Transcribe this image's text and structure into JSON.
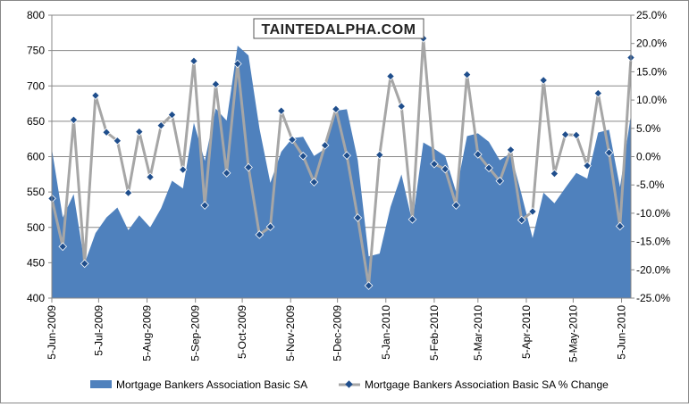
{
  "chart_data": {
    "type": "area+line",
    "title": "",
    "watermark": "TAINTEDALPHA.COM",
    "x_start": "5-Jun-2009",
    "interval_days": 7,
    "x_ticks": [
      {
        "label": "5-Jun-2009",
        "day": 0
      },
      {
        "label": "5-Jul-2009",
        "day": 30
      },
      {
        "label": "5-Aug-2009",
        "day": 61
      },
      {
        "label": "5-Sep-2009",
        "day": 92
      },
      {
        "label": "5-Oct-2009",
        "day": 122
      },
      {
        "label": "5-Nov-2009",
        "day": 153
      },
      {
        "label": "5-Dec-2009",
        "day": 183
      },
      {
        "label": "5-Jan-2010",
        "day": 214
      },
      {
        "label": "5-Feb-2010",
        "day": 245
      },
      {
        "label": "5-Mar-2010",
        "day": 273
      },
      {
        "label": "5-Apr-2010",
        "day": 304
      },
      {
        "label": "5-May-2010",
        "day": 334
      },
      {
        "label": "5-Jun-2010",
        "day": 365
      }
    ],
    "x_range_days": [
      0,
      371
    ],
    "y_left": {
      "min": 400,
      "max": 800,
      "step": 50,
      "ticks": [
        "400",
        "450",
        "500",
        "550",
        "600",
        "650",
        "700",
        "750",
        "800"
      ]
    },
    "y_right": {
      "min": -25,
      "max": 25,
      "step": 5,
      "ticks": [
        "-25.0%",
        "-20.0%",
        "-15.0%",
        "-10.0%",
        "-5.0%",
        "0.0%",
        "5.0%",
        "10.0%",
        "15.0%",
        "20.0%",
        "25.0%"
      ]
    },
    "grid": true,
    "legend_position": "bottom",
    "series": [
      {
        "name": "Mortgage Bankers Association Basic SA",
        "type": "area",
        "axis": "left",
        "color": "#4f81bd",
        "values": [
          611,
          514,
          547,
          449,
          492,
          514,
          528,
          496,
          517,
          500,
          527,
          566,
          555,
          648,
          594,
          668,
          651,
          757,
          743,
          640,
          563,
          607,
          626,
          628,
          601,
          611,
          665,
          667,
          595,
          459,
          463,
          529,
          575,
          507,
          620,
          611,
          601,
          550,
          629,
          633,
          621,
          595,
          605,
          546,
          485,
          549,
          534,
          556,
          577,
          569,
          634,
          638,
          557,
          659
        ]
      },
      {
        "name": "Mortgage Bankers Association Basic SA % Change",
        "type": "line",
        "axis": "right",
        "color": "#a6a6a6",
        "marker_color": "#1f4e8c",
        "values": [
          -7.4,
          -15.9,
          6.5,
          -18.9,
          10.8,
          4.3,
          2.8,
          -6.4,
          4.4,
          -3.6,
          5.5,
          7.4,
          -2.3,
          16.9,
          -8.6,
          12.8,
          -2.9,
          16.4,
          -1.9,
          -13.8,
          -12.4,
          8.1,
          3.0,
          0.1,
          -4.5,
          2.0,
          8.4,
          0.2,
          -10.8,
          -22.8,
          0.3,
          14.2,
          8.9,
          -11.1,
          20.9,
          -1.3,
          -2.2,
          -8.6,
          14.5,
          0.4,
          -2.0,
          -4.3,
          1.2,
          -11.2,
          -9.7,
          13.5,
          -3.0,
          3.9,
          3.8,
          -1.6,
          11.2,
          0.7,
          -12.3,
          17.5
        ]
      }
    ]
  }
}
